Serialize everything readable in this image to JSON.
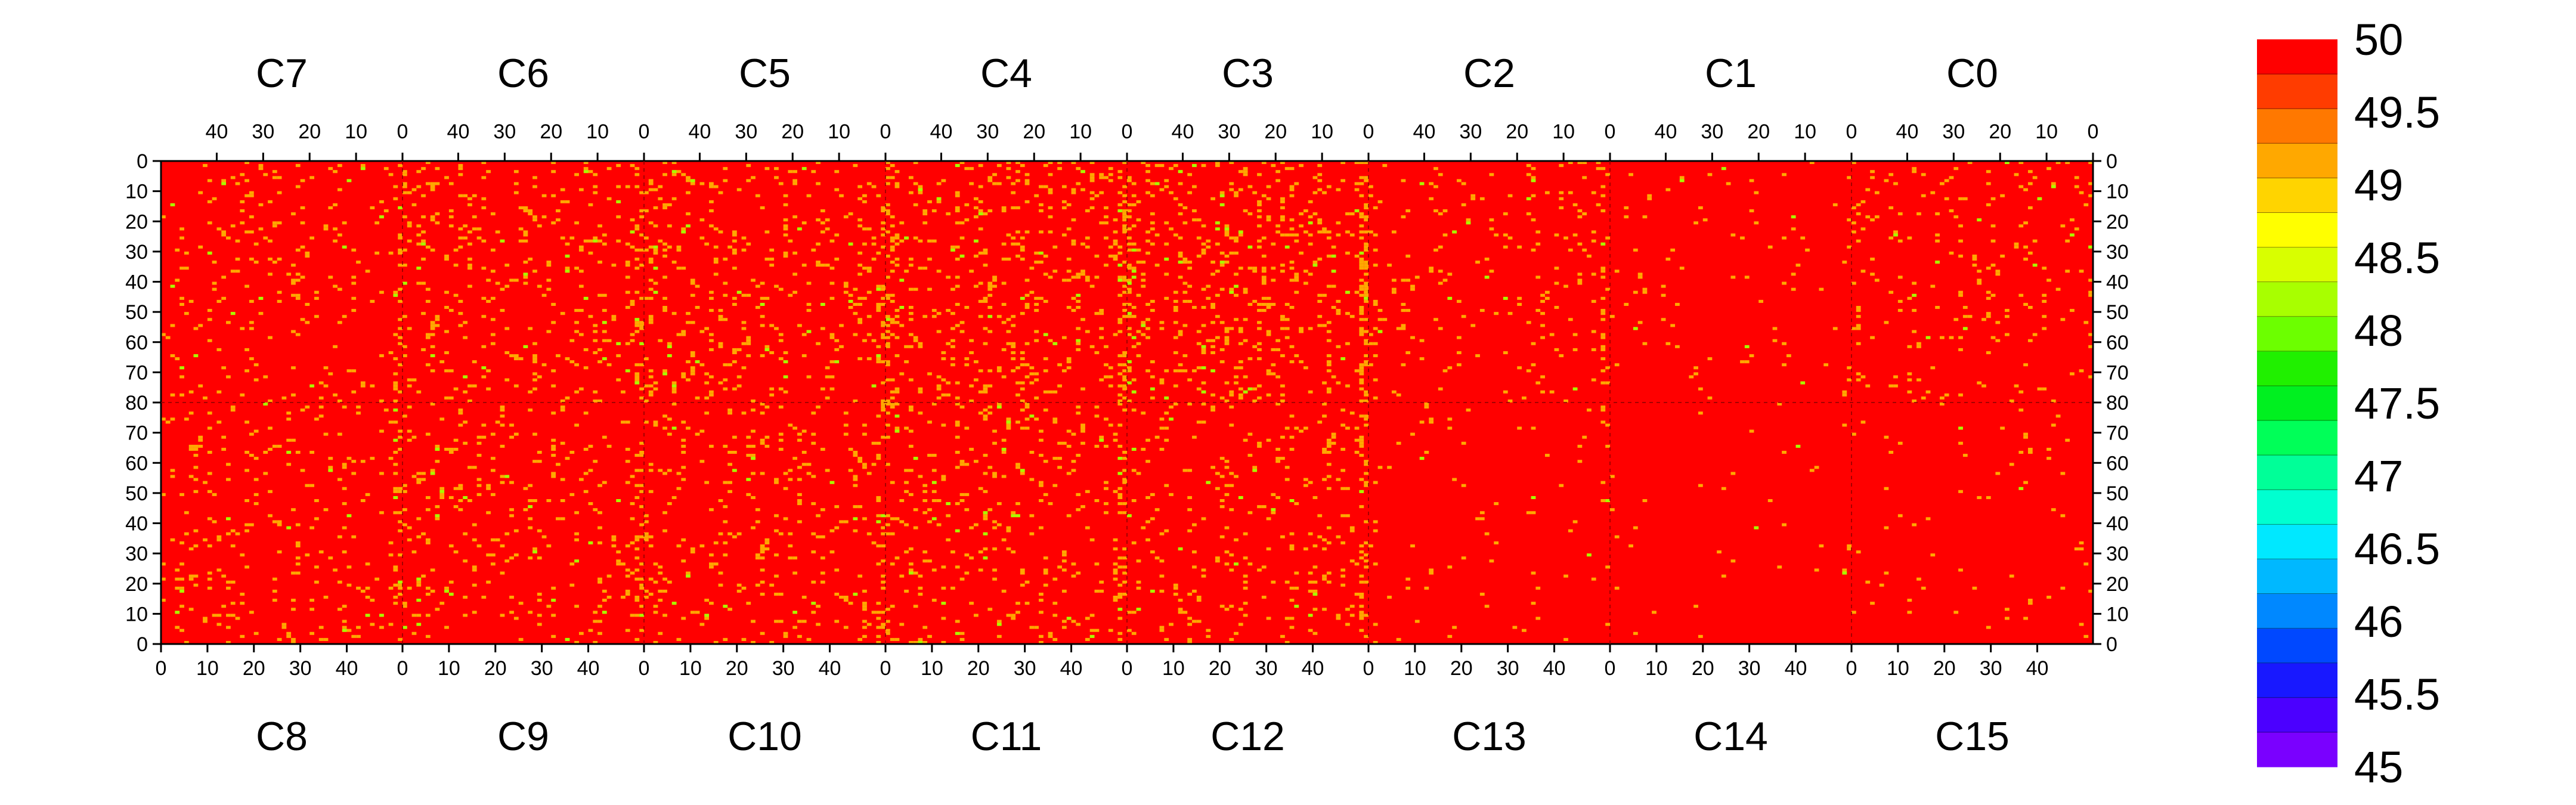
{
  "chart_data": {
    "type": "heatmap",
    "title": "",
    "chips_top": [
      "C7",
      "C6",
      "C5",
      "C4",
      "C3",
      "C2",
      "C1",
      "C0"
    ],
    "chips_bottom": [
      "C8",
      "C9",
      "C10",
      "C11",
      "C12",
      "C13",
      "C14",
      "C15"
    ],
    "top_x_ticks": [
      "40",
      "30",
      "20",
      "10",
      "0"
    ],
    "bottom_x_ticks": [
      "0",
      "10",
      "20",
      "30",
      "40"
    ],
    "y_ticks_top_half": [
      "0",
      "10",
      "20",
      "30",
      "40",
      "50",
      "60",
      "70",
      "80"
    ],
    "y_ticks_bottom_half": [
      "70",
      "60",
      "50",
      "40",
      "30",
      "20",
      "10",
      "0"
    ],
    "columns_per_chip": 52,
    "rows_per_half": 80,
    "colorbar": {
      "min": 45,
      "max": 50,
      "step": 0.25,
      "tick_labels": [
        "50",
        "49.5",
        "49",
        "48.5",
        "48",
        "47.5",
        "47",
        "46.5",
        "46",
        "45.5",
        "45"
      ],
      "colors": [
        "#7a00ff",
        "#4b00ff",
        "#1818ff",
        "#0048ff",
        "#0088ff",
        "#00b8ff",
        "#00e8ff",
        "#00ffd0",
        "#00ff98",
        "#00ff58",
        "#00f020",
        "#20f000",
        "#6cff00",
        "#a8ff00",
        "#d8ff00",
        "#ffff00",
        "#ffd400",
        "#ffa800",
        "#ff7800",
        "#ff3c00",
        "#ff0000"
      ]
    },
    "dominant_value": 50,
    "secondary_value": 49.25,
    "rare_value": 48.25,
    "notes": "Pixel threshold map; nearly all pixels at 50 (red), scattered orange pixels near 49.25, concentrated along chip boundary columns; chips C13-C15 and C1 nearly uniform red."
  }
}
